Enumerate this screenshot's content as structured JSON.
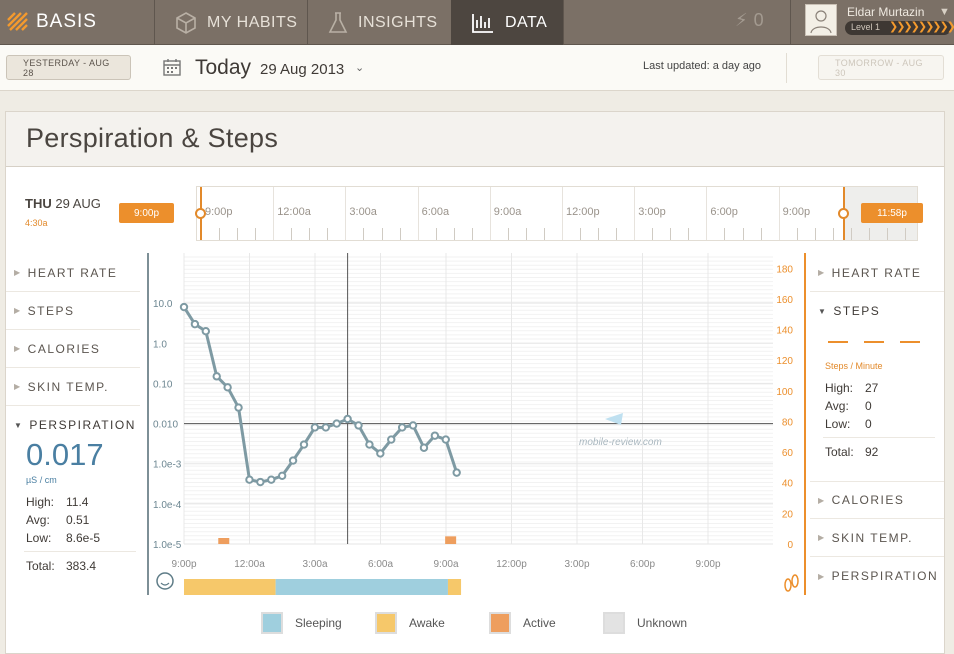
{
  "nav": {
    "brand": "BASIS",
    "tabs": [
      {
        "label": "MY HABITS",
        "icon": "cube-icon"
      },
      {
        "label": "INSIGHTS",
        "icon": "flask-icon"
      },
      {
        "label": "DATA",
        "icon": "bar-chart-icon",
        "active": true
      }
    ],
    "points": "0",
    "user": {
      "name": "Eldar Murtazin",
      "level": "Level 1"
    }
  },
  "date_bar": {
    "yesterday": "YESTERDAY - AUG 28",
    "today_label": "Today",
    "today_date": "29 Aug 2013",
    "last_updated": "Last updated: a day ago",
    "tomorrow": "TOMORROW - AUG 30"
  },
  "panel": {
    "title": "Perspiration & Steps",
    "timeline": {
      "day_name": "THU",
      "day_date": "29 AUG",
      "sub_time": "4:30a",
      "labels": [
        "9:00p",
        "12:00a",
        "3:00a",
        "6:00a",
        "9:00a",
        "12:00p",
        "3:00p",
        "6:00p",
        "9:00p"
      ],
      "start_flag": "9:00p",
      "end_flag": "11:58p"
    },
    "left_metrics": [
      "HEART RATE",
      "STEPS",
      "CALORIES",
      "SKIN TEMP.",
      "PERSPIRATION"
    ],
    "perspiration": {
      "value": "0.017",
      "unit": "µS / cm",
      "high_label": "High:",
      "high": "11.4",
      "avg_label": "Avg:",
      "avg": "0.51",
      "low_label": "Low:",
      "low": "8.6e-5",
      "total_label": "Total:",
      "total": "383.4"
    },
    "right_metrics_top": [
      "HEART RATE",
      "STEPS"
    ],
    "right_metrics_bottom": [
      "CALORIES",
      "SKIN TEMP.",
      "PERSPIRATION"
    ],
    "steps": {
      "unit": "Steps / Minute",
      "high_label": "High:",
      "high": "27",
      "avg_label": "Avg:",
      "avg": "0",
      "low_label": "Low:",
      "low": "0",
      "total_label": "Total:",
      "total": "92"
    },
    "watermark": "mobile-review.com",
    "legend": [
      {
        "label": "Sleeping",
        "color": "#9fcfde"
      },
      {
        "label": "Awake",
        "color": "#f6c86a"
      },
      {
        "label": "Active",
        "color": "#ee9e5e"
      },
      {
        "label": "Unknown",
        "color": "#e3e3e3"
      }
    ]
  },
  "chart_data": {
    "type": "line",
    "x_labels": [
      "9:00p",
      "12:00a",
      "3:00a",
      "6:00a",
      "9:00a",
      "12:00p",
      "3:00p",
      "6:00p",
      "9:00p"
    ],
    "y_left_labels": [
      "10.0",
      "1.0",
      "0.10",
      "0.010",
      "1.0e-3",
      "1.0e-4",
      "1.0e-5"
    ],
    "y_left_scale": "log",
    "y_left_range": [
      1e-05,
      100
    ],
    "y_right_labels": [
      "0",
      "20",
      "40",
      "60",
      "80",
      "100",
      "120",
      "140",
      "160",
      "180"
    ],
    "y_right_range": [
      0,
      190
    ],
    "x_range_hours": [
      0,
      27
    ],
    "series": [
      {
        "color": "#7e9aa3",
        "points": [
          [
            0.0,
            8.0
          ],
          [
            0.5,
            3.0
          ],
          [
            1.0,
            2.0
          ],
          [
            1.5,
            0.15
          ],
          [
            2.0,
            0.08
          ],
          [
            2.5,
            0.025
          ],
          [
            3.0,
            0.0004
          ],
          [
            3.5,
            0.00035
          ],
          [
            4.0,
            0.0004
          ],
          [
            4.5,
            0.0005
          ],
          [
            5.0,
            0.0012
          ],
          [
            5.5,
            0.003
          ],
          [
            6.0,
            0.008
          ],
          [
            6.5,
            0.008
          ],
          [
            7.0,
            0.01
          ],
          [
            7.5,
            0.013
          ],
          [
            8.0,
            0.009
          ],
          [
            8.5,
            0.003
          ],
          [
            9.0,
            0.0018
          ],
          [
            9.5,
            0.004
          ],
          [
            10.0,
            0.008
          ],
          [
            10.5,
            0.009
          ],
          [
            11.0,
            0.0025
          ],
          [
            11.5,
            0.005
          ],
          [
            12.0,
            0.004
          ],
          [
            12.5,
            0.0006
          ]
        ]
      }
    ],
    "steps_bars": [
      [
        1.8,
        3
      ],
      [
        12.2,
        5
      ]
    ],
    "activity_band": [
      {
        "state": "Awake",
        "from": 0,
        "to": 4.2
      },
      {
        "state": "Sleeping",
        "from": 4.2,
        "to": 12.1
      },
      {
        "state": "Awake",
        "from": 12.1,
        "to": 12.7
      }
    ],
    "crosshair": {
      "x": 7.5,
      "y": 0.01
    }
  }
}
